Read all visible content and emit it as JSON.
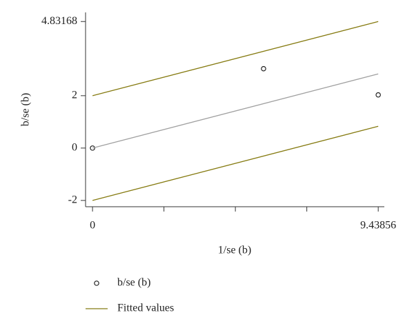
{
  "chart_data": {
    "type": "scatter",
    "y_label": "b/se (b)",
    "x_label": "1/se (b)",
    "xlim": [
      -0.23,
      9.64
    ],
    "ylim": [
      -2.24,
      5.18
    ],
    "xticks": [
      0,
      9.43856
    ],
    "xminorticks": [
      2.35964,
      4.71928,
      7.07892
    ],
    "yticks": [
      -2,
      0,
      2,
      4.83168
    ],
    "series": [
      {
        "name": "b/se (b)",
        "kind": "scatter",
        "color": "#222222",
        "x": [
          0,
          5.65,
          9.43856
        ],
        "values": [
          0,
          3.03,
          2.03
        ]
      },
      {
        "name": "Fitted values",
        "kind": "line",
        "color": "#857a10",
        "x": [
          0,
          9.43856
        ],
        "values": [
          2,
          4.83168
        ]
      },
      {
        "kind": "line",
        "color": "#857a10",
        "x": [
          0,
          9.43856
        ],
        "values": [
          -2,
          0.83168
        ]
      },
      {
        "kind": "line",
        "color": "#a0a0a0",
        "x": [
          0,
          9.43856
        ],
        "values": [
          0,
          2.83168
        ]
      }
    ]
  }
}
